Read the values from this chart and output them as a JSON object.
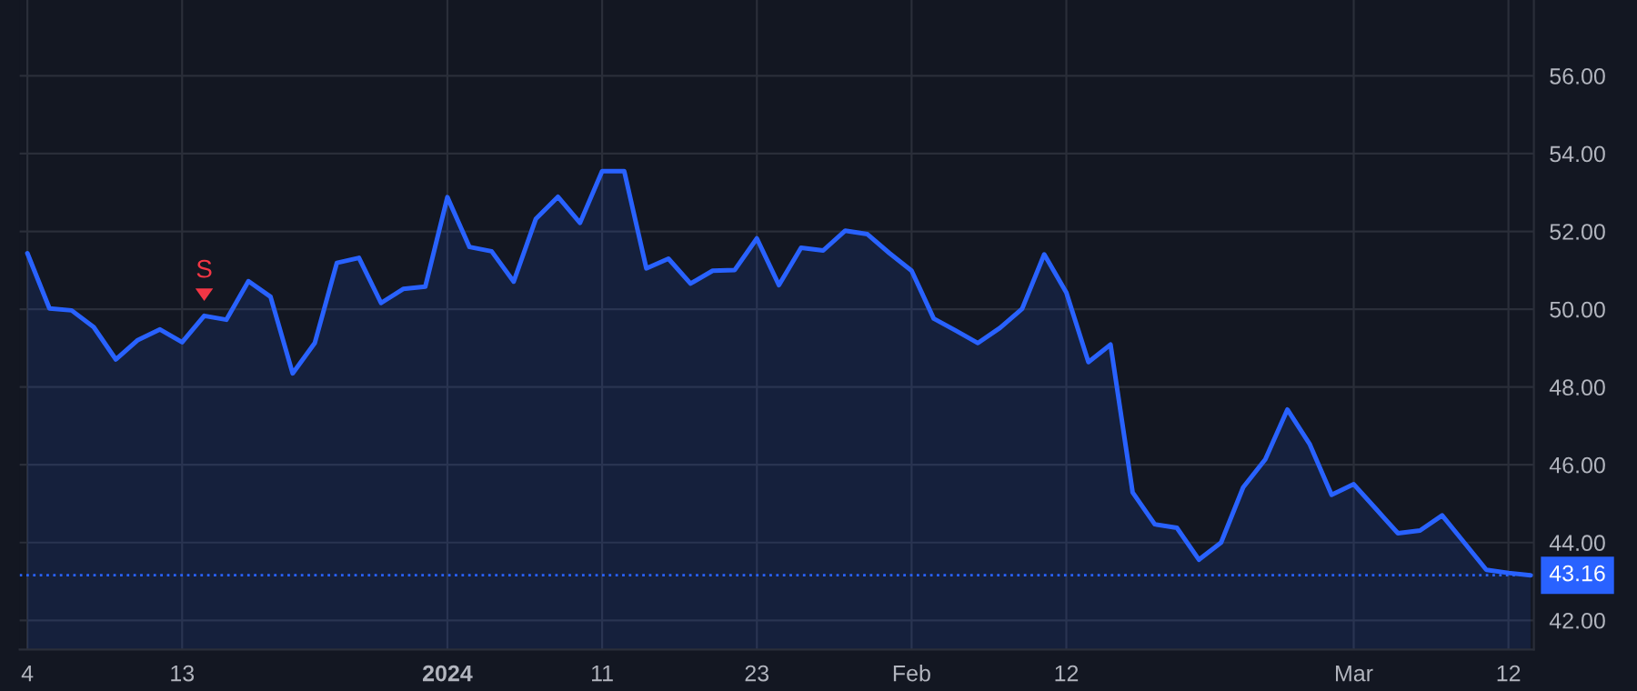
{
  "chart_data": {
    "type": "area",
    "categories": [
      "4",
      null,
      null,
      null,
      null,
      null,
      null,
      "13",
      null,
      null,
      null,
      null,
      null,
      null,
      null,
      null,
      null,
      null,
      null,
      "2024",
      null,
      null,
      null,
      null,
      null,
      null,
      "11",
      null,
      null,
      null,
      null,
      null,
      null,
      "23",
      null,
      null,
      null,
      null,
      null,
      null,
      "Feb",
      null,
      null,
      null,
      null,
      null,
      null,
      "12",
      null,
      null,
      null,
      null,
      null,
      null,
      null,
      null,
      null,
      null,
      null,
      null,
      "Mar",
      null,
      null,
      null,
      null,
      null,
      null,
      "12",
      null
    ],
    "series": [
      {
        "color": "#2962ff",
        "values": [
          51.44,
          50.02,
          49.97,
          49.54,
          48.71,
          49.21,
          49.48,
          49.15,
          49.83,
          49.73,
          50.72,
          50.32,
          48.35,
          49.13,
          51.19,
          51.32,
          50.16,
          50.52,
          50.58,
          52.88,
          51.6,
          51.49,
          50.71,
          52.32,
          52.89,
          52.22,
          53.55,
          53.55,
          51.05,
          51.3,
          50.66,
          50.99,
          51.01,
          51.82,
          50.62,
          51.58,
          51.51,
          52.02,
          51.93,
          51.44,
          50.99,
          49.76,
          49.45,
          49.13,
          49.52,
          50.01,
          51.41,
          50.43,
          48.64,
          49.09,
          45.29,
          44.47,
          44.38,
          43.56,
          44.0,
          45.42,
          46.14,
          47.42,
          46.54,
          45.23,
          45.5,
          44.87,
          44.24,
          44.31,
          44.7,
          44.0,
          43.3,
          43.22,
          43.16
        ]
      }
    ],
    "ylim": [
      41.25,
      57.95
    ],
    "yticks": [
      {
        "value": 42,
        "label": "42.00"
      },
      {
        "value": 44,
        "label": "44.00"
      },
      {
        "value": 46,
        "label": "46.00"
      },
      {
        "value": 48,
        "label": "48.00"
      },
      {
        "value": 50,
        "label": "50.00"
      },
      {
        "value": 52,
        "label": "52.00"
      },
      {
        "value": 54,
        "label": "54.00"
      },
      {
        "value": 56,
        "label": "56.00"
      }
    ],
    "ref_lines": [
      {
        "axis": "y",
        "value": 43.16,
        "label": "43.16",
        "color": "#2962ff",
        "line_style": "dotted"
      }
    ],
    "annotations": [
      {
        "text": "S",
        "y": 49.83
      }
    ],
    "grid": true,
    "legend": false
  }
}
